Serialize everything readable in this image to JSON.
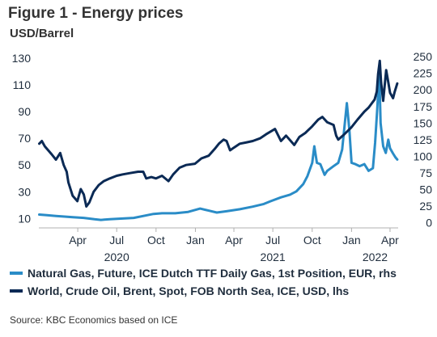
{
  "figure": {
    "title": "Figure 1 - Energy prices",
    "unit_label": "USD/Barrel",
    "source": "Source: KBC Economics based on ICE"
  },
  "colors": {
    "gas": "#2a8cc7",
    "oil": "#0b2a55",
    "axis": "#b0b0b0"
  },
  "legend": [
    {
      "label": "Natural Gas, Future, ICE Dutch TTF Daily Gas, 1st Position, EUR, rhs",
      "color": "#2a8cc7"
    },
    {
      "label": "World, Crude Oil, Brent, Spot, FOB North Sea, ICE, USD, lhs",
      "color": "#0b2a55"
    }
  ],
  "chart_data": {
    "type": "line",
    "x_axis": {
      "tick_labels": [
        "Apr",
        "Jul",
        "Oct",
        "Jan",
        "Apr",
        "Jul",
        "Oct",
        "Jan",
        "Apr"
      ],
      "year_labels": [
        "2020",
        "2021",
        "2022"
      ],
      "range": [
        "2020-01-01",
        "2022-04-20"
      ]
    },
    "left_axis": {
      "ticks": [
        10,
        30,
        50,
        70,
        90,
        110,
        130
      ],
      "range": [
        6,
        136
      ]
    },
    "right_axis": {
      "ticks": [
        0,
        25,
        50,
        75,
        100,
        125,
        150,
        175,
        200,
        225,
        250
      ],
      "range": [
        -2,
        260
      ]
    },
    "series": [
      {
        "name": "Natural Gas, Future, ICE Dutch TTF Daily Gas, 1st Position, EUR, rhs",
        "axis": "right",
        "points": [
          [
            "2020-01-02",
            12
          ],
          [
            "2020-01-20",
            11
          ],
          [
            "2020-02-10",
            10
          ],
          [
            "2020-03-01",
            9
          ],
          [
            "2020-03-20",
            8
          ],
          [
            "2020-04-15",
            7
          ],
          [
            "2020-05-10",
            5
          ],
          [
            "2020-05-25",
            4
          ],
          [
            "2020-06-15",
            5
          ],
          [
            "2020-07-15",
            6
          ],
          [
            "2020-08-10",
            7
          ],
          [
            "2020-09-10",
            11
          ],
          [
            "2020-09-25",
            13
          ],
          [
            "2020-10-15",
            14
          ],
          [
            "2020-11-15",
            14
          ],
          [
            "2020-12-15",
            16
          ],
          [
            "2021-01-12",
            21
          ],
          [
            "2021-02-01",
            18
          ],
          [
            "2021-02-20",
            15
          ],
          [
            "2021-03-15",
            17
          ],
          [
            "2021-04-15",
            20
          ],
          [
            "2021-05-15",
            24
          ],
          [
            "2021-06-10",
            28
          ],
          [
            "2021-06-25",
            32
          ],
          [
            "2021-07-20",
            38
          ],
          [
            "2021-08-10",
            42
          ],
          [
            "2021-08-25",
            47
          ],
          [
            "2021-09-10",
            58
          ],
          [
            "2021-09-20",
            70
          ],
          [
            "2021-10-01",
            90
          ],
          [
            "2021-10-06",
            115
          ],
          [
            "2021-10-12",
            90
          ],
          [
            "2021-10-20",
            88
          ],
          [
            "2021-10-30",
            72
          ],
          [
            "2021-11-05",
            78
          ],
          [
            "2021-11-20",
            85
          ],
          [
            "2021-12-01",
            90
          ],
          [
            "2021-12-10",
            110
          ],
          [
            "2021-12-21",
            180
          ],
          [
            "2021-12-27",
            140
          ],
          [
            "2022-01-01",
            90
          ],
          [
            "2022-01-10",
            88
          ],
          [
            "2022-01-20",
            85
          ],
          [
            "2022-01-31",
            88
          ],
          [
            "2022-02-10",
            78
          ],
          [
            "2022-02-20",
            82
          ],
          [
            "2022-02-25",
            120
          ],
          [
            "2022-03-02",
            170
          ],
          [
            "2022-03-07",
            227
          ],
          [
            "2022-03-10",
            150
          ],
          [
            "2022-03-16",
            115
          ],
          [
            "2022-03-22",
            105
          ],
          [
            "2022-03-28",
            125
          ],
          [
            "2022-04-01",
            112
          ],
          [
            "2022-04-08",
            104
          ],
          [
            "2022-04-14",
            98
          ],
          [
            "2022-04-18",
            95
          ]
        ]
      },
      {
        "name": "World, Crude Oil, Brent, Spot, FOB North Sea, ICE, USD, lhs",
        "axis": "left",
        "points": [
          [
            "2020-01-02",
            66
          ],
          [
            "2020-01-08",
            68
          ],
          [
            "2020-01-15",
            64
          ],
          [
            "2020-01-31",
            58
          ],
          [
            "2020-02-10",
            54
          ],
          [
            "2020-02-20",
            59
          ],
          [
            "2020-02-28",
            50
          ],
          [
            "2020-03-06",
            45
          ],
          [
            "2020-03-10",
            37
          ],
          [
            "2020-03-20",
            27
          ],
          [
            "2020-03-31",
            23
          ],
          [
            "2020-04-08",
            32
          ],
          [
            "2020-04-15",
            28
          ],
          [
            "2020-04-21",
            19
          ],
          [
            "2020-04-28",
            22
          ],
          [
            "2020-05-08",
            30
          ],
          [
            "2020-05-20",
            35
          ],
          [
            "2020-06-01",
            38
          ],
          [
            "2020-06-15",
            40
          ],
          [
            "2020-07-01",
            42
          ],
          [
            "2020-07-15",
            43
          ],
          [
            "2020-08-01",
            44
          ],
          [
            "2020-08-20",
            45
          ],
          [
            "2020-09-01",
            45
          ],
          [
            "2020-09-08",
            40
          ],
          [
            "2020-09-20",
            41
          ],
          [
            "2020-10-01",
            40
          ],
          [
            "2020-10-15",
            42
          ],
          [
            "2020-10-30",
            38
          ],
          [
            "2020-11-10",
            43
          ],
          [
            "2020-11-25",
            48
          ],
          [
            "2020-12-10",
            50
          ],
          [
            "2020-12-31",
            51
          ],
          [
            "2021-01-15",
            55
          ],
          [
            "2021-02-01",
            57
          ],
          [
            "2021-02-15",
            62
          ],
          [
            "2021-02-25",
            66
          ],
          [
            "2021-03-08",
            69
          ],
          [
            "2021-03-15",
            68
          ],
          [
            "2021-03-23",
            61
          ],
          [
            "2021-04-01",
            63
          ],
          [
            "2021-04-15",
            66
          ],
          [
            "2021-05-01",
            67
          ],
          [
            "2021-05-15",
            68
          ],
          [
            "2021-06-01",
            70
          ],
          [
            "2021-06-15",
            73
          ],
          [
            "2021-07-01",
            76
          ],
          [
            "2021-07-06",
            77
          ],
          [
            "2021-07-20",
            68
          ],
          [
            "2021-08-01",
            72
          ],
          [
            "2021-08-20",
            65
          ],
          [
            "2021-09-01",
            71
          ],
          [
            "2021-09-15",
            74
          ],
          [
            "2021-10-01",
            79
          ],
          [
            "2021-10-15",
            84
          ],
          [
            "2021-10-25",
            86
          ],
          [
            "2021-11-05",
            82
          ],
          [
            "2021-11-20",
            80
          ],
          [
            "2021-11-26",
            72
          ],
          [
            "2021-12-01",
            69
          ],
          [
            "2021-12-15",
            73
          ],
          [
            "2021-12-31",
            78
          ],
          [
            "2022-01-15",
            84
          ],
          [
            "2022-01-31",
            90
          ],
          [
            "2022-02-10",
            93
          ],
          [
            "2022-02-24",
            99
          ],
          [
            "2022-03-01",
            105
          ],
          [
            "2022-03-04",
            118
          ],
          [
            "2022-03-08",
            128
          ],
          [
            "2022-03-11",
            112
          ],
          [
            "2022-03-16",
            98
          ],
          [
            "2022-03-23",
            121
          ],
          [
            "2022-03-28",
            112
          ],
          [
            "2022-04-01",
            104
          ],
          [
            "2022-04-08",
            100
          ],
          [
            "2022-04-12",
            105
          ],
          [
            "2022-04-18",
            111
          ]
        ]
      }
    ]
  }
}
